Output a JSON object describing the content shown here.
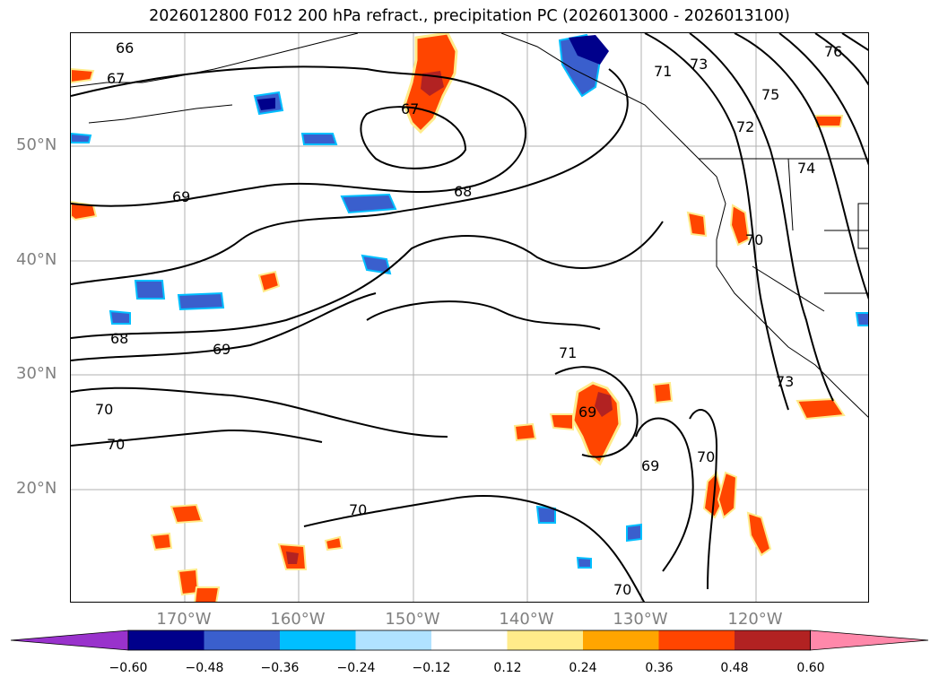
{
  "title": "2026012800 F012 200 hPa refract., precipitation PC (2026013000 - 2026013100)",
  "map": {
    "lat_labels": [
      "50°N",
      "40°N",
      "30°N",
      "20°N"
    ],
    "lon_labels": [
      "170°W",
      "160°W",
      "150°W",
      "140°W",
      "130°W",
      "120°W"
    ],
    "contour_labels": [
      "66",
      "67",
      "67",
      "68",
      "68",
      "69",
      "69",
      "69",
      "69",
      "70",
      "70",
      "70",
      "70",
      "70",
      "70",
      "71",
      "71",
      "72",
      "73",
      "73",
      "74",
      "75",
      "76"
    ],
    "precip_field_colors": {
      "positive": "#ff4500",
      "strong_positive": "#b22222",
      "negative": "#3a5fcd",
      "strong_negative": "#1e90ff"
    }
  },
  "colorbar": {
    "tick_labels": [
      "−0.60",
      "−0.48",
      "−0.36",
      "−0.24",
      "−0.12",
      "0.12",
      "0.24",
      "0.36",
      "0.48",
      "0.60"
    ],
    "colors": [
      "#9932cc",
      "#00008b",
      "#3a5fcd",
      "#00bfff",
      "#b0e2ff",
      "#ffffff",
      "#ffeb8a",
      "#ffa500",
      "#ff4500",
      "#b22222",
      "#ff88aa"
    ]
  }
}
